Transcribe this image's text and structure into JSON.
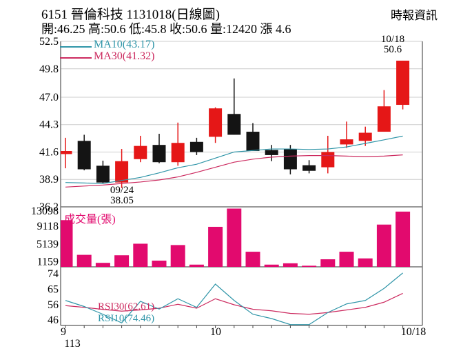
{
  "header": {
    "title": "6151 晉倫科技 1131018(日線圖)",
    "brand": "時報資訊",
    "stats": "開:46.25 高:50.6 低:45.8 收:50.6 量:12420 漲 4.6"
  },
  "colors": {
    "up_candle": "#e51717",
    "down_candle": "#141414",
    "volume_bar": "#e20a6e",
    "ma10": "#2f95a8",
    "ma30": "#cc2a5f",
    "grid": "#cccccc",
    "frame": "#777777",
    "text": "#000000"
  },
  "chart_data": {
    "type": "candlestick",
    "title": "6151 晉倫科技 1131018(日線圖)",
    "panes": [
      "price",
      "volume",
      "rsi"
    ],
    "x_axis": {
      "labels": [
        {
          "text": "9"
        },
        {
          "text": "10"
        },
        {
          "text": "10/18"
        }
      ],
      "year": "113"
    },
    "price_pane": {
      "ylim": [
        36.2,
        52.5
      ],
      "yticks": [
        52.5,
        49.8,
        47.0,
        44.3,
        41.6,
        38.9,
        36.2
      ],
      "legend": [
        {
          "label": "MA10(43.17)",
          "series": "ma10"
        },
        {
          "label": "MA30(41.32)",
          "series": "ma30"
        }
      ],
      "annotations": [
        {
          "lines": [
            "10/18",
            "50.6"
          ],
          "position": "above-last-candle"
        },
        {
          "lines": [
            "09/24",
            "38.05"
          ],
          "position": "below-session-low"
        }
      ],
      "candles": [
        {
          "o": 41.4,
          "h": 43.0,
          "l": 40.0,
          "c": 41.7
        },
        {
          "o": 42.7,
          "h": 43.3,
          "l": 39.8,
          "c": 39.9
        },
        {
          "o": 40.25,
          "h": 40.75,
          "l": 38.55,
          "c": 38.6
        },
        {
          "o": 38.6,
          "h": 41.9,
          "l": 38.05,
          "c": 40.7
        },
        {
          "o": 40.9,
          "h": 43.2,
          "l": 40.6,
          "c": 42.2
        },
        {
          "o": 42.3,
          "h": 43.4,
          "l": 40.5,
          "c": 40.6
        },
        {
          "o": 40.6,
          "h": 44.5,
          "l": 40.25,
          "c": 42.5
        },
        {
          "o": 42.6,
          "h": 43.0,
          "l": 41.3,
          "c": 41.6
        },
        {
          "o": 43.1,
          "h": 46.0,
          "l": 42.5,
          "c": 45.9
        },
        {
          "o": 45.35,
          "h": 48.85,
          "l": 43.3,
          "c": 43.3
        },
        {
          "o": 43.6,
          "h": 44.45,
          "l": 41.7,
          "c": 41.7
        },
        {
          "o": 41.8,
          "h": 42.3,
          "l": 40.7,
          "c": 41.3
        },
        {
          "o": 41.9,
          "h": 42.3,
          "l": 39.4,
          "c": 39.9
        },
        {
          "o": 40.3,
          "h": 40.8,
          "l": 39.5,
          "c": 39.75
        },
        {
          "o": 40.1,
          "h": 43.2,
          "l": 39.5,
          "c": 41.6
        },
        {
          "o": 42.35,
          "h": 44.6,
          "l": 42.0,
          "c": 42.85
        },
        {
          "o": 42.7,
          "h": 44.1,
          "l": 42.2,
          "c": 43.5
        },
        {
          "o": 43.6,
          "h": 47.7,
          "l": 43.6,
          "c": 46.1
        },
        {
          "o": 46.25,
          "h": 50.6,
          "l": 45.8,
          "c": 50.6
        }
      ],
      "ma10": [
        38.6,
        38.55,
        38.5,
        38.8,
        39.1,
        39.55,
        40.05,
        40.4,
        41.0,
        41.6,
        41.75,
        41.9,
        41.9,
        41.85,
        41.9,
        42.1,
        42.45,
        42.8,
        43.17
      ],
      "ma30": [
        38.15,
        38.25,
        38.35,
        38.5,
        38.65,
        38.85,
        39.15,
        39.6,
        40.1,
        40.6,
        40.9,
        41.1,
        41.2,
        41.25,
        41.25,
        41.2,
        41.15,
        41.2,
        41.32
      ]
    },
    "volume_pane": {
      "label": "成交量(張)",
      "yticks": [
        13098,
        9118,
        5139,
        1159
      ],
      "ymax": 13098,
      "values": [
        10500,
        2700,
        900,
        2600,
        5200,
        1400,
        4900,
        500,
        9000,
        13098,
        3400,
        500,
        800,
        250,
        1700,
        3400,
        1900,
        9500,
        12420
      ]
    },
    "rsi_pane": {
      "yticks": [
        74,
        65,
        56,
        46
      ],
      "series": [
        {
          "name": "RSI30(62.61)",
          "values": [
            55.5,
            54.5,
            53.3,
            52.3,
            53.0,
            54.0,
            56.3,
            54.0,
            59.5,
            56.0,
            53.4,
            52.5,
            51.0,
            50.5,
            51.5,
            53.0,
            54.5,
            57.5,
            62.61
          ]
        },
        {
          "name": "RSI10(74.46)",
          "values": [
            58.5,
            55.0,
            50.5,
            45.5,
            58.0,
            53.5,
            59.5,
            54.5,
            68.0,
            58.5,
            50.5,
            48.0,
            44.5,
            44.5,
            51.5,
            56.5,
            58.5,
            65.5,
            74.46
          ]
        }
      ]
    }
  }
}
